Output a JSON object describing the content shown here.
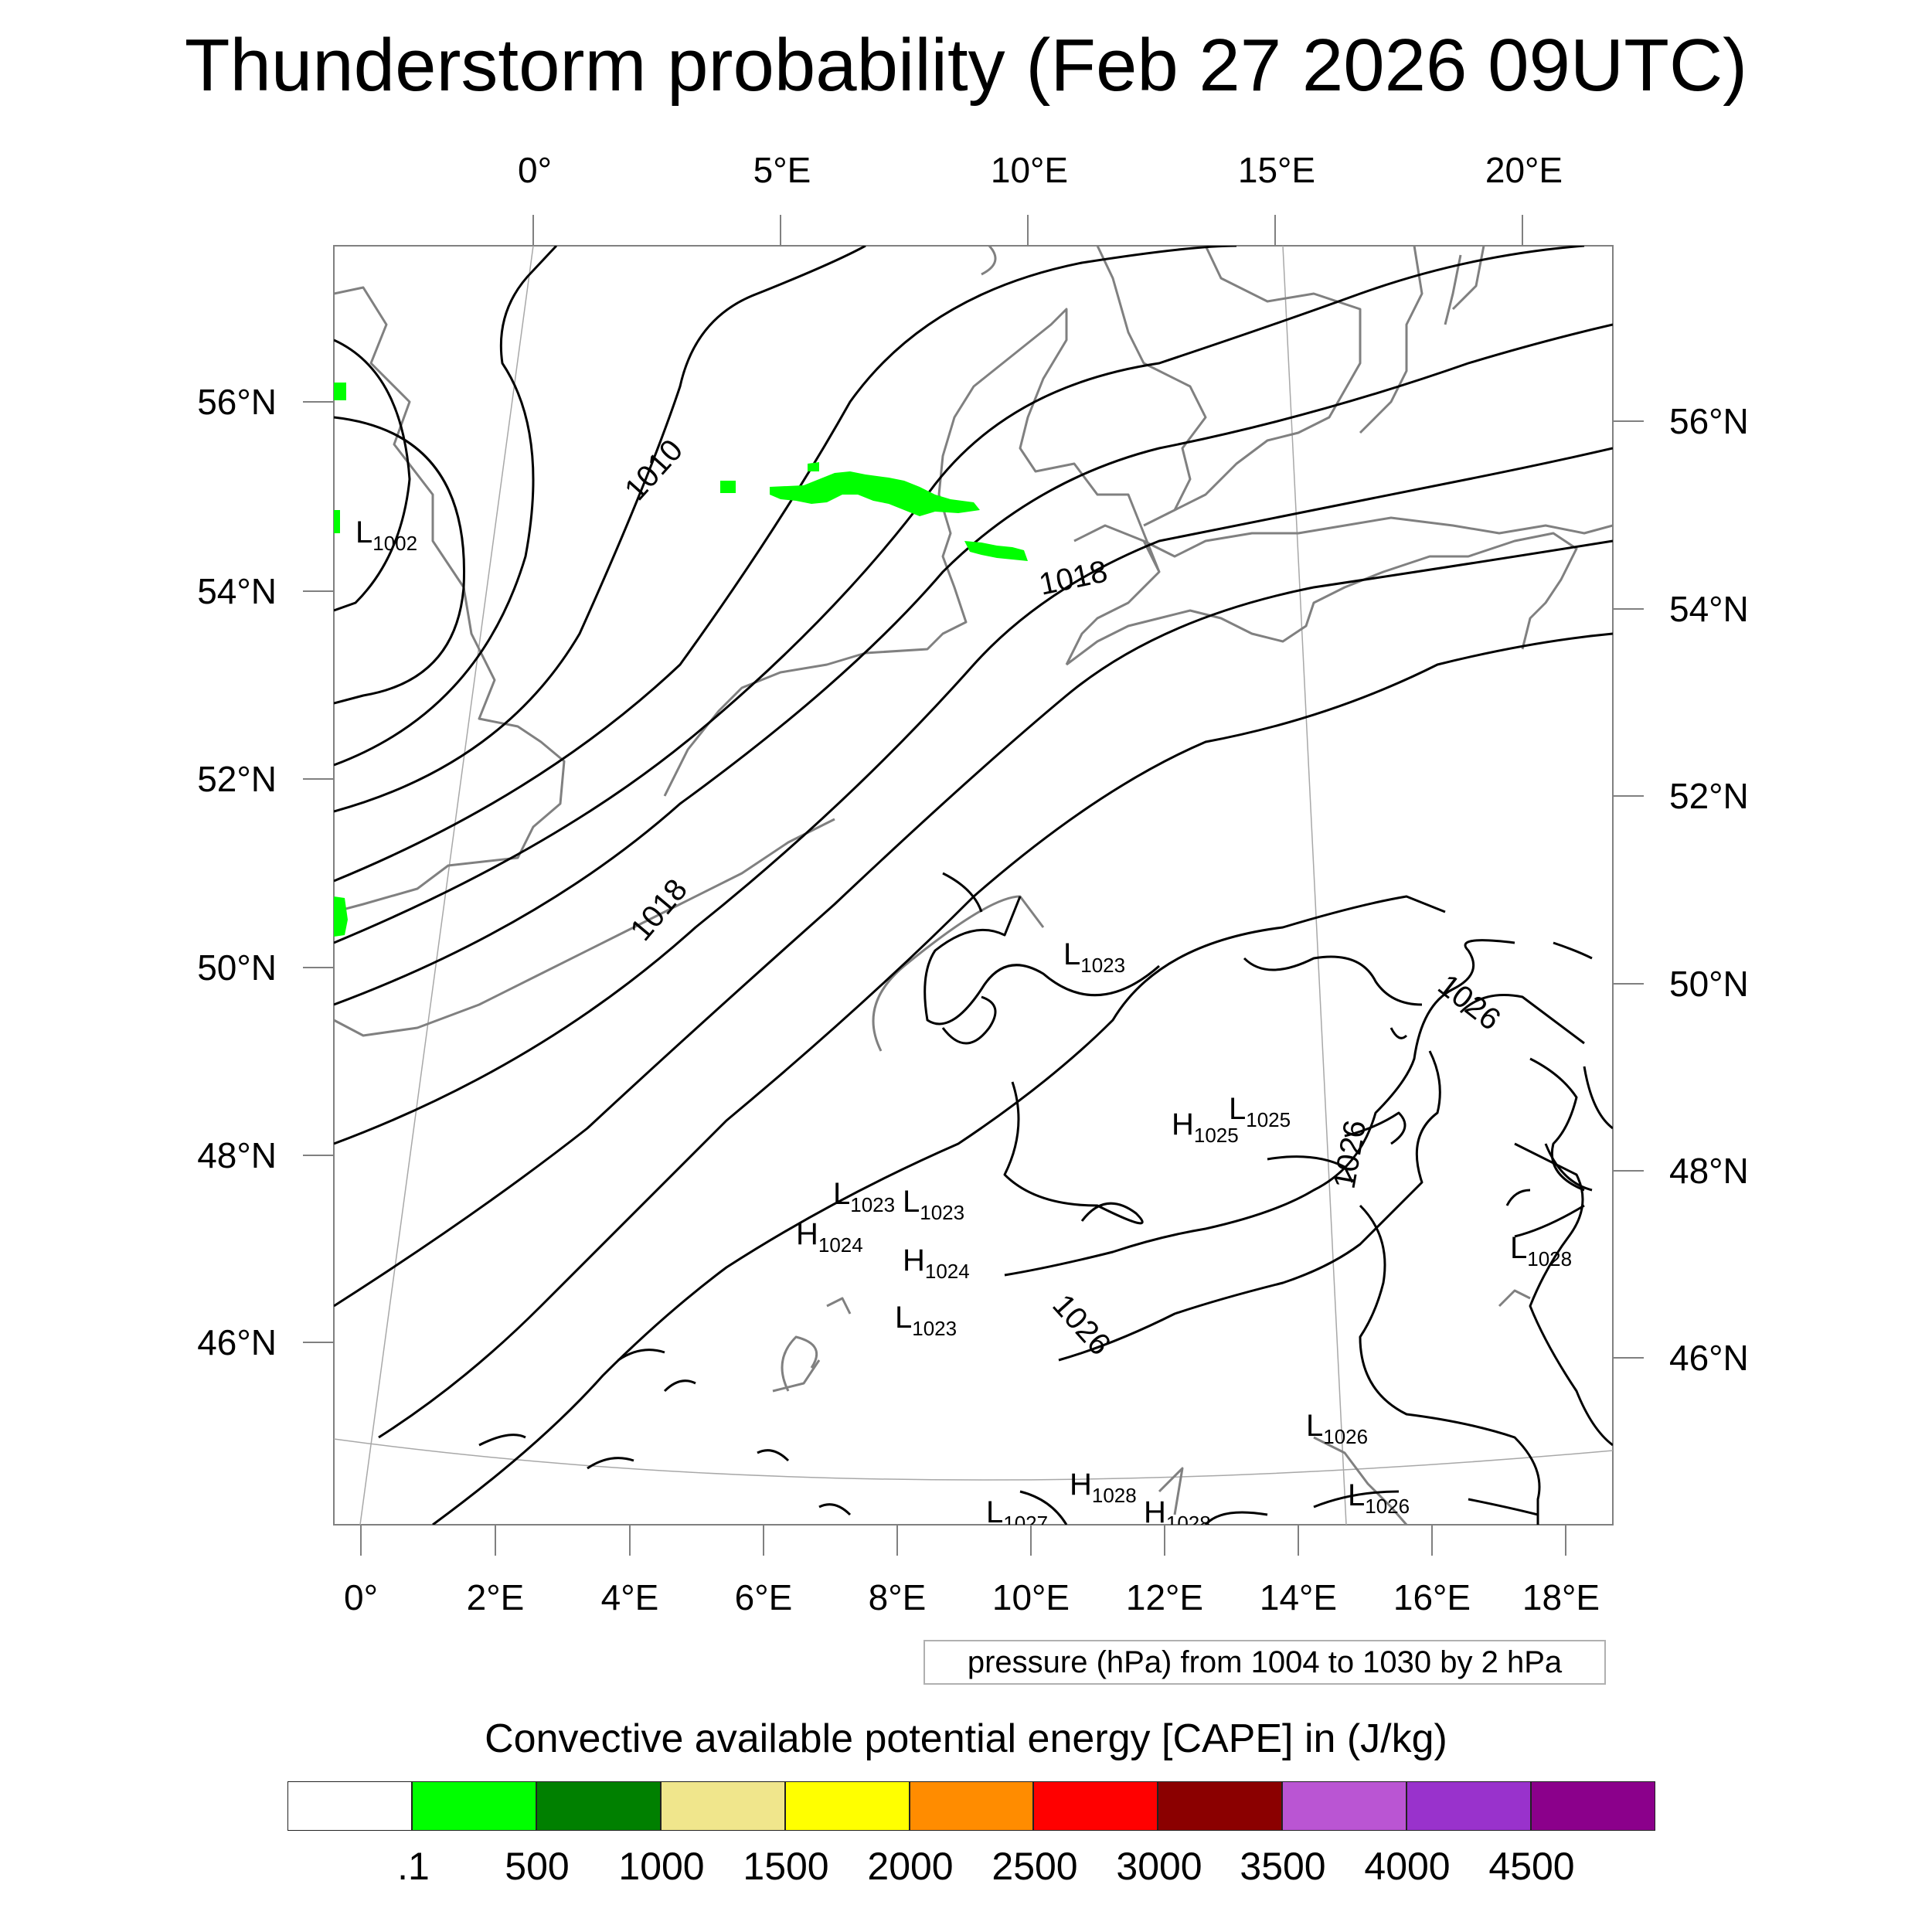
{
  "title": "Thunderstorm probability (Feb 27 2026 09UTC)",
  "map": {
    "top_lon_labels": [
      "0°",
      "5°E",
      "10°E",
      "15°E",
      "20°E"
    ],
    "bottom_lon_labels": [
      "0°",
      "2°E",
      "4°E",
      "6°E",
      "8°E",
      "10°E",
      "12°E",
      "14°E",
      "16°E",
      "18°E"
    ],
    "left_lat_labels": [
      "56°N",
      "54°N",
      "52°N",
      "50°N",
      "48°N",
      "46°N"
    ],
    "right_lat_labels": [
      "56°N",
      "54°N",
      "52°N",
      "50°N",
      "48°N",
      "46°N"
    ],
    "contour_labels": [
      "1010",
      "1018",
      "1018",
      "1026",
      "1026",
      "1026"
    ],
    "pressure_centers": [
      {
        "type": "L",
        "value": "1002"
      },
      {
        "type": "L",
        "value": "1023"
      },
      {
        "type": "H",
        "value": "1025"
      },
      {
        "type": "L",
        "value": "1025"
      },
      {
        "type": "L",
        "value": "1023"
      },
      {
        "type": "L",
        "value": "1023"
      },
      {
        "type": "H",
        "value": "1024"
      },
      {
        "type": "H",
        "value": "1024"
      },
      {
        "type": "L",
        "value": "1023"
      },
      {
        "type": "L",
        "value": "1028"
      },
      {
        "type": "L",
        "value": "1026"
      },
      {
        "type": "H",
        "value": "1028"
      },
      {
        "type": "L",
        "value": "1026"
      },
      {
        "type": "L",
        "value": "1027"
      },
      {
        "type": "H",
        "value": "1028"
      }
    ],
    "cape_fill_color": "#00ff00",
    "isobar_color": "#000000",
    "coastline_color": "#808080"
  },
  "contour_note": "pressure (hPa) from 1004 to 1030 by 2 hPa",
  "legend": {
    "title": "Convective available potential energy [CAPE] in (J/kg)",
    "colors": [
      "#ffffff",
      "#00ff00",
      "#008000",
      "#f0e68c",
      "#ffff00",
      "#ff8c00",
      "#ff0000",
      "#8b0000",
      "#ba55d3",
      "#9932cc",
      "#8b008b"
    ],
    "ticks": [
      ".1",
      "500",
      "1000",
      "1500",
      "2000",
      "2500",
      "3000",
      "3500",
      "4000",
      "4500"
    ]
  }
}
